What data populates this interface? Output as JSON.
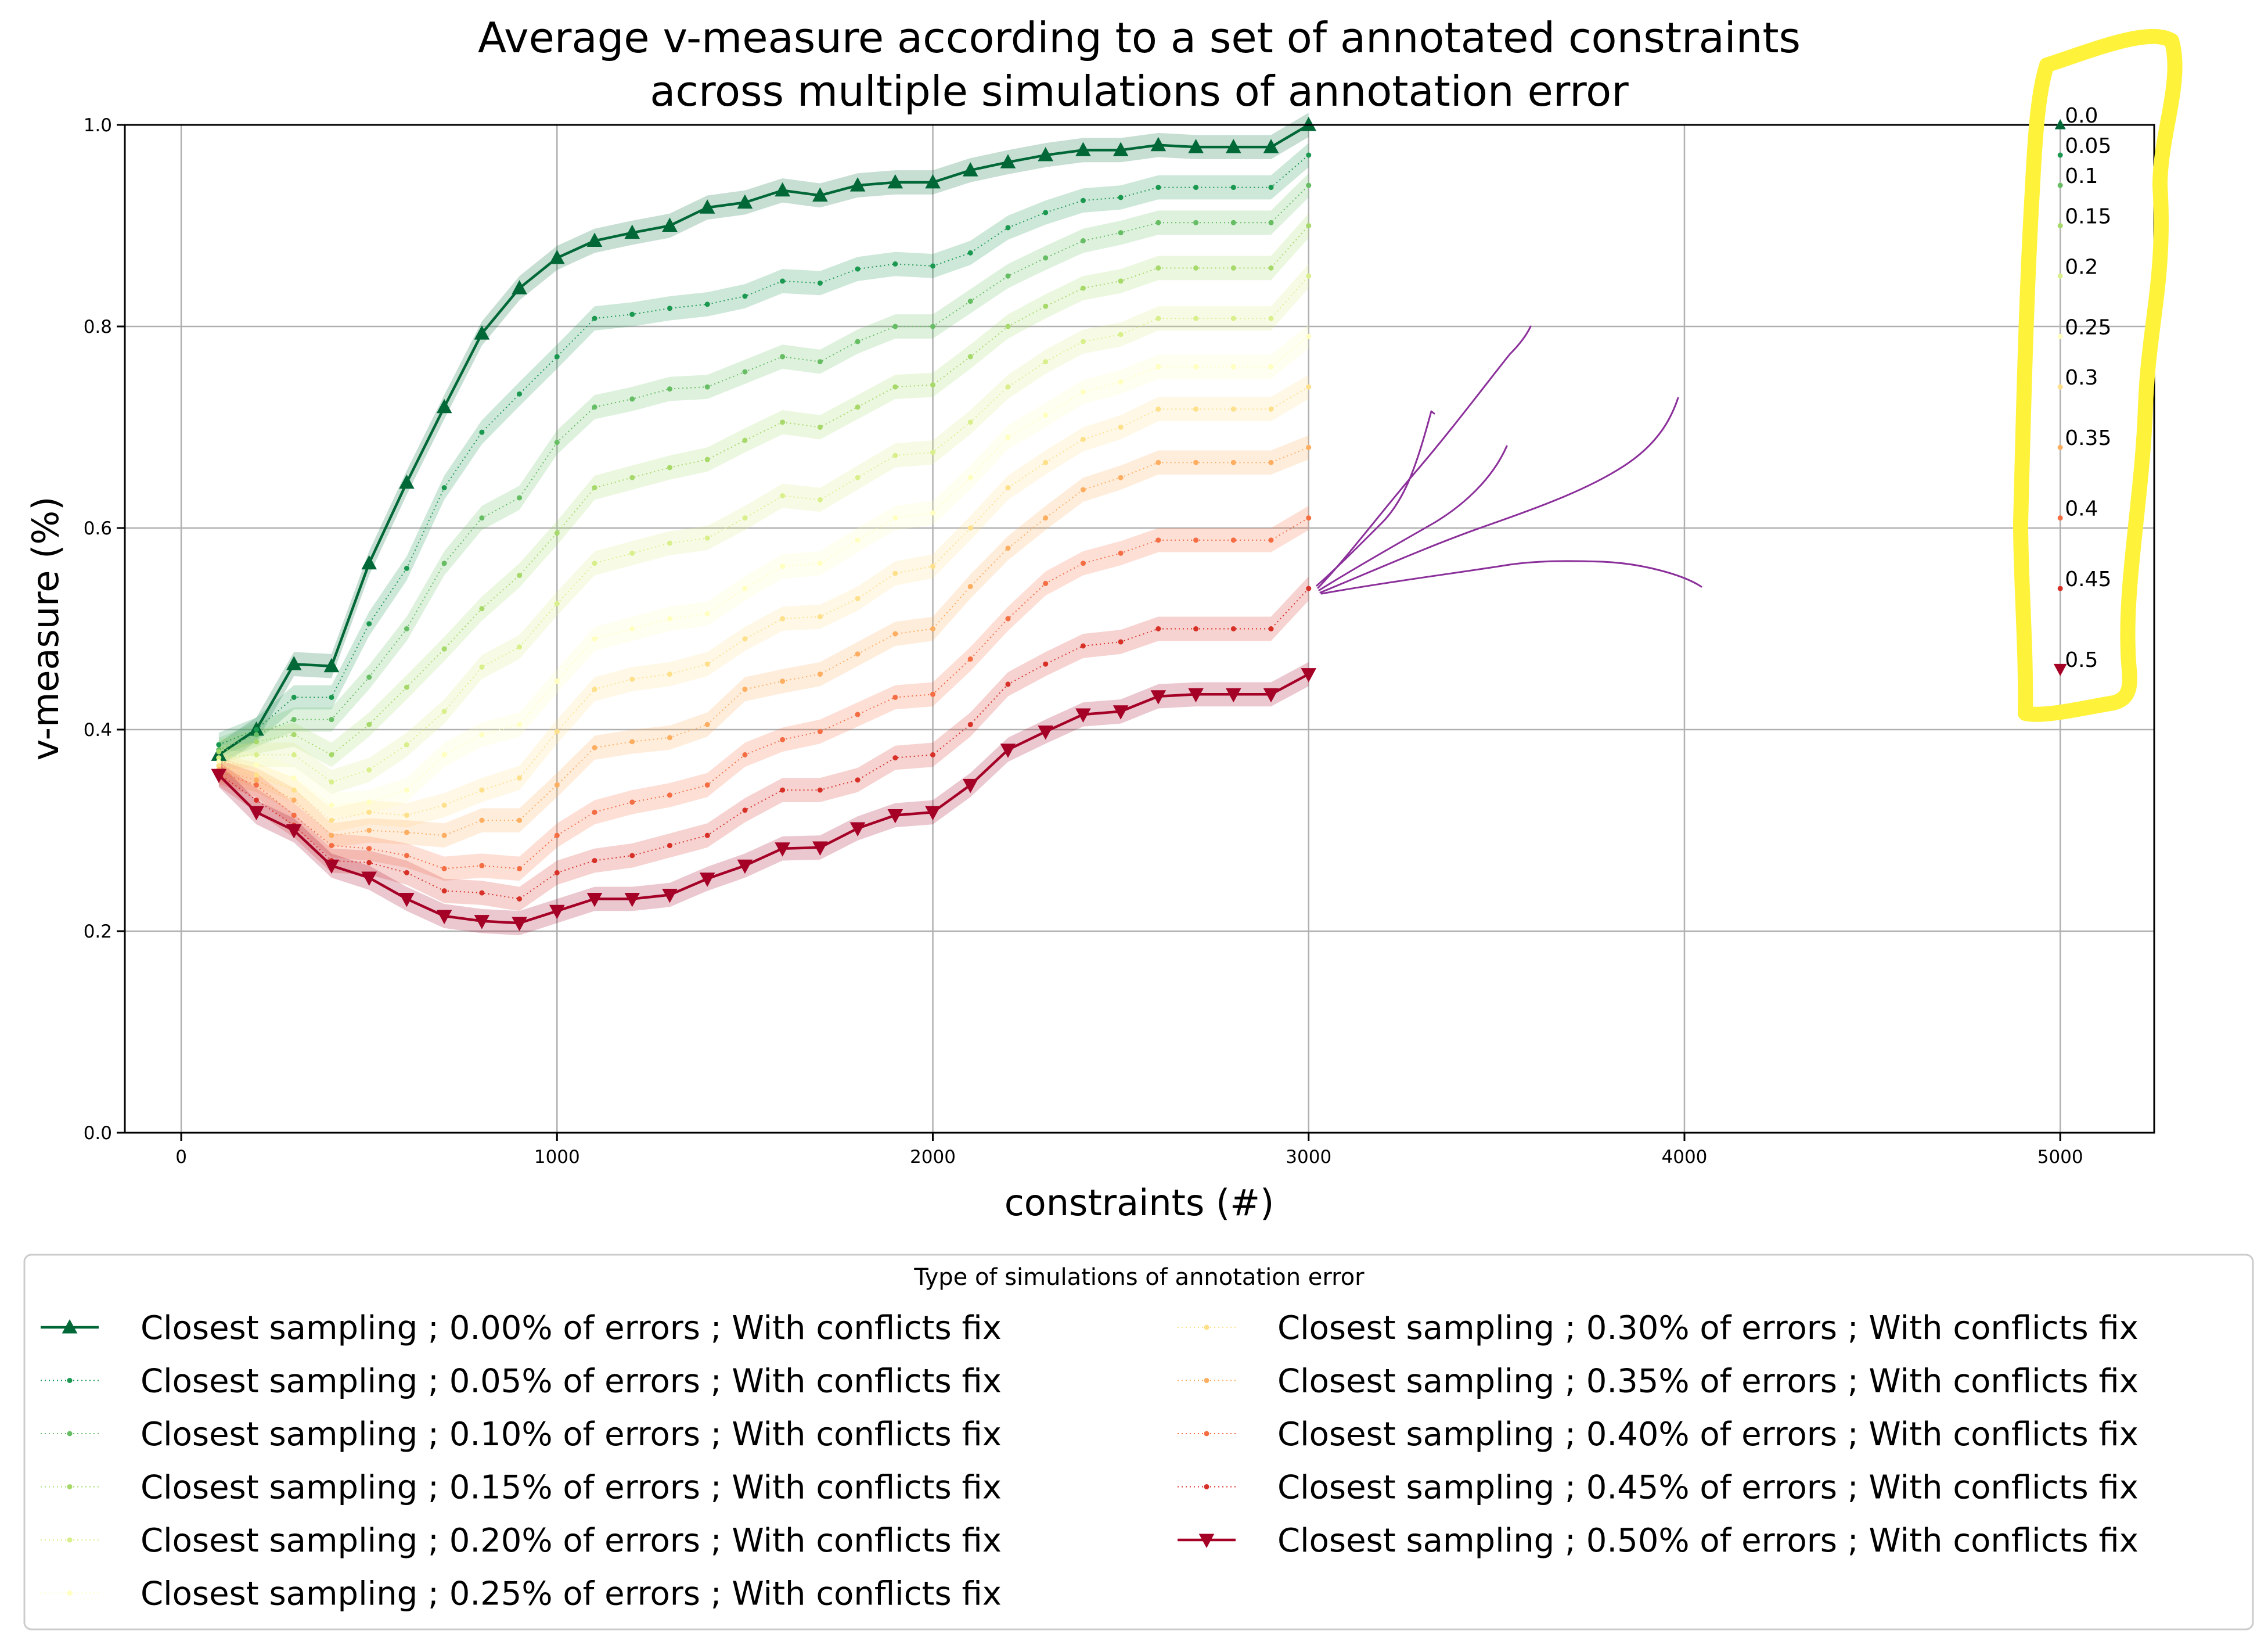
{
  "chart_data": {
    "type": "line",
    "title": [
      "Average v-measure according to a set of annotated constraints",
      "across multiple simulations of annotation error"
    ],
    "xlabel": "constraints (#)",
    "ylabel": "v-measure (%)",
    "xlim": [
      -150,
      5250
    ],
    "ylim": [
      0.0,
      1.0
    ],
    "xticks": [
      0,
      1000,
      2000,
      3000,
      4000,
      5000
    ],
    "yticks": [
      0.0,
      0.2,
      0.4,
      0.6,
      0.8,
      1.0
    ],
    "xtick_labels": [
      "0",
      "1000",
      "2000",
      "3000",
      "4000",
      "5000"
    ],
    "ytick_labels": [
      "0.0",
      "0.2",
      "0.4",
      "0.6",
      "0.8",
      "1.0"
    ],
    "grid": true,
    "legend_title": "Type of simulations of annotation error",
    "legend_placement": "bottom",
    "x": [
      100,
      200,
      300,
      400,
      500,
      600,
      700,
      800,
      900,
      1000,
      1100,
      1200,
      1300,
      1400,
      1500,
      1600,
      1700,
      1800,
      1900,
      2000,
      2100,
      2200,
      2300,
      2400,
      2500,
      2600,
      2700,
      2800,
      2900,
      3000
    ],
    "series": [
      {
        "name": "Closest sampling ; 0.00% of errors ; With conflicts fix",
        "end_label": "0.0",
        "end_value": 1.0,
        "color": "#006837",
        "style": "solid",
        "marker": "triangle-up",
        "values": [
          0.375,
          0.4,
          0.465,
          0.463,
          0.565,
          0.645,
          0.72,
          0.793,
          0.838,
          0.868,
          0.885,
          0.893,
          0.9,
          0.918,
          0.923,
          0.935,
          0.93,
          0.94,
          0.943,
          0.943,
          0.955,
          0.963,
          0.97,
          0.975,
          0.975,
          0.98,
          0.978,
          0.978,
          0.978,
          1.0
        ]
      },
      {
        "name": "Closest sampling ; 0.05% of errors ; With conflicts fix",
        "end_label": "0.05",
        "end_value": 0.97,
        "color": "#1a9850",
        "style": "dotted",
        "marker": "dot",
        "values": [
          0.385,
          0.4,
          0.432,
          0.432,
          0.505,
          0.56,
          0.64,
          0.695,
          0.733,
          0.77,
          0.808,
          0.812,
          0.818,
          0.822,
          0.83,
          0.845,
          0.843,
          0.857,
          0.862,
          0.86,
          0.873,
          0.898,
          0.913,
          0.925,
          0.928,
          0.938,
          0.938,
          0.938,
          0.938,
          0.97
        ]
      },
      {
        "name": "Closest sampling ; 0.10% of errors ; With conflicts fix",
        "end_label": "0.1",
        "end_value": 0.94,
        "color": "#66bd63",
        "style": "dotted",
        "marker": "dot",
        "values": [
          0.38,
          0.395,
          0.41,
          0.41,
          0.452,
          0.5,
          0.565,
          0.61,
          0.63,
          0.685,
          0.72,
          0.728,
          0.738,
          0.74,
          0.755,
          0.77,
          0.765,
          0.785,
          0.8,
          0.8,
          0.825,
          0.85,
          0.868,
          0.885,
          0.893,
          0.903,
          0.903,
          0.903,
          0.903,
          0.94
        ]
      },
      {
        "name": "Closest sampling ; 0.15% of errors ; With conflicts fix",
        "end_label": "0.15",
        "end_value": 0.9,
        "color": "#a6d96a",
        "style": "dotted",
        "marker": "dot",
        "values": [
          0.378,
          0.388,
          0.395,
          0.375,
          0.405,
          0.442,
          0.48,
          0.52,
          0.553,
          0.595,
          0.64,
          0.65,
          0.66,
          0.668,
          0.687,
          0.705,
          0.7,
          0.72,
          0.74,
          0.742,
          0.77,
          0.8,
          0.82,
          0.838,
          0.845,
          0.858,
          0.858,
          0.858,
          0.858,
          0.9
        ]
      },
      {
        "name": "Closest sampling ; 0.20% of errors ; With conflicts fix",
        "end_label": "0.2",
        "end_value": 0.85,
        "color": "#d9ef8b",
        "style": "dotted",
        "marker": "dot",
        "values": [
          0.372,
          0.375,
          0.375,
          0.348,
          0.36,
          0.385,
          0.418,
          0.462,
          0.482,
          0.525,
          0.565,
          0.575,
          0.585,
          0.59,
          0.61,
          0.632,
          0.628,
          0.65,
          0.672,
          0.675,
          0.705,
          0.74,
          0.765,
          0.785,
          0.792,
          0.808,
          0.808,
          0.808,
          0.808,
          0.85
        ]
      },
      {
        "name": "Closest sampling ; 0.25% of errors ; With conflicts fix",
        "end_label": "0.25",
        "end_value": 0.79,
        "color": "#ffffbf",
        "style": "dotted",
        "marker": "dot",
        "values": [
          0.368,
          0.365,
          0.352,
          0.325,
          0.328,
          0.34,
          0.375,
          0.395,
          0.405,
          0.448,
          0.49,
          0.5,
          0.51,
          0.515,
          0.54,
          0.562,
          0.565,
          0.588,
          0.61,
          0.615,
          0.65,
          0.69,
          0.712,
          0.735,
          0.745,
          0.76,
          0.76,
          0.76,
          0.76,
          0.79
        ]
      },
      {
        "name": "Closest sampling ; 0.30% of errors ; With conflicts fix",
        "end_label": "0.3",
        "end_value": 0.74,
        "color": "#fee08b",
        "style": "dotted",
        "marker": "dot",
        "values": [
          0.364,
          0.355,
          0.34,
          0.31,
          0.318,
          0.315,
          0.325,
          0.34,
          0.352,
          0.398,
          0.44,
          0.45,
          0.455,
          0.465,
          0.49,
          0.51,
          0.512,
          0.53,
          0.555,
          0.562,
          0.6,
          0.64,
          0.665,
          0.688,
          0.7,
          0.718,
          0.718,
          0.718,
          0.718,
          0.74
        ]
      },
      {
        "name": "Closest sampling ; 0.35% of errors ; With conflicts fix",
        "end_label": "0.35",
        "end_value": 0.68,
        "color": "#fdae61",
        "style": "dotted",
        "marker": "dot",
        "values": [
          0.36,
          0.35,
          0.33,
          0.295,
          0.3,
          0.298,
          0.295,
          0.31,
          0.31,
          0.345,
          0.382,
          0.388,
          0.392,
          0.405,
          0.44,
          0.448,
          0.455,
          0.475,
          0.495,
          0.5,
          0.542,
          0.58,
          0.61,
          0.638,
          0.65,
          0.665,
          0.665,
          0.665,
          0.665,
          0.68
        ]
      },
      {
        "name": "Closest sampling ; 0.40% of errors ; With conflicts fix",
        "end_label": "0.4",
        "end_value": 0.61,
        "color": "#f46d43",
        "style": "dotted",
        "marker": "dot",
        "values": [
          0.358,
          0.345,
          0.315,
          0.285,
          0.282,
          0.275,
          0.262,
          0.265,
          0.262,
          0.295,
          0.318,
          0.328,
          0.335,
          0.345,
          0.375,
          0.39,
          0.398,
          0.415,
          0.432,
          0.435,
          0.47,
          0.51,
          0.545,
          0.565,
          0.575,
          0.588,
          0.588,
          0.588,
          0.588,
          0.61
        ]
      },
      {
        "name": "Closest sampling ; 0.45% of errors ; With conflicts fix",
        "end_label": "0.45",
        "end_value": 0.54,
        "color": "#d73027",
        "style": "dotted",
        "marker": "dot",
        "values": [
          0.356,
          0.33,
          0.305,
          0.27,
          0.268,
          0.258,
          0.24,
          0.238,
          0.232,
          0.258,
          0.27,
          0.275,
          0.285,
          0.295,
          0.32,
          0.34,
          0.34,
          0.35,
          0.372,
          0.375,
          0.405,
          0.445,
          0.465,
          0.483,
          0.487,
          0.5,
          0.5,
          0.5,
          0.5,
          0.54
        ]
      },
      {
        "name": "Closest sampling ; 0.50% of errors ; With conflicts fix",
        "end_label": "0.5",
        "end_value": 0.46,
        "color": "#a50026",
        "style": "solid",
        "marker": "triangle-down",
        "values": [
          0.355,
          0.318,
          0.3,
          0.265,
          0.253,
          0.232,
          0.215,
          0.21,
          0.208,
          0.22,
          0.232,
          0.232,
          0.236,
          0.252,
          0.265,
          0.282,
          0.283,
          0.302,
          0.315,
          0.318,
          0.345,
          0.38,
          0.398,
          0.415,
          0.418,
          0.433,
          0.435,
          0.435,
          0.435,
          0.455
        ]
      }
    ]
  },
  "annotation": {
    "highlight_color": "#fff23a",
    "stroke_color": "#8b2f9a"
  }
}
